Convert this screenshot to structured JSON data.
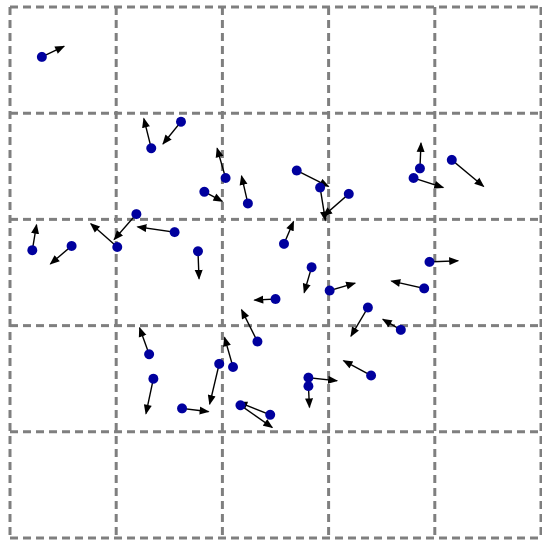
{
  "diagram": {
    "grid": {
      "rows": 5,
      "cols": 5,
      "style": "dashed"
    },
    "colors": {
      "grid": "#7f7f7f",
      "particle": "#00009e",
      "arrow": "#000000"
    },
    "particles": [
      {
        "x": 0.3,
        "y": 4.53,
        "dx": 0.21,
        "dy": 0.1
      },
      {
        "x": 1.61,
        "y": 3.92,
        "dx": -0.17,
        "dy": -0.21
      },
      {
        "x": 1.33,
        "y": 3.67,
        "dx": -0.07,
        "dy": 0.28
      },
      {
        "x": 1.83,
        "y": 3.26,
        "dx": 0.17,
        "dy": -0.09
      },
      {
        "x": 2.7,
        "y": 3.46,
        "dx": 0.3,
        "dy": -0.15
      },
      {
        "x": 2.24,
        "y": 3.15,
        "dx": -0.06,
        "dy": 0.26
      },
      {
        "x": 3.19,
        "y": 3.24,
        "dx": -0.24,
        "dy": -0.21
      },
      {
        "x": 2.03,
        "y": 3.39,
        "dx": -0.08,
        "dy": 0.28
      },
      {
        "x": 1.19,
        "y": 3.05,
        "dx": -0.21,
        "dy": -0.24
      },
      {
        "x": 1.55,
        "y": 2.88,
        "dx": -0.35,
        "dy": 0.05
      },
      {
        "x": 2.92,
        "y": 3.3,
        "dx": 0.05,
        "dy": -0.31
      },
      {
        "x": 0.58,
        "y": 2.75,
        "dx": -0.2,
        "dy": -0.17
      },
      {
        "x": 1.01,
        "y": 2.74,
        "dx": -0.25,
        "dy": 0.22
      },
      {
        "x": 0.21,
        "y": 2.71,
        "dx": 0.04,
        "dy": 0.24
      },
      {
        "x": 1.77,
        "y": 2.7,
        "dx": 0.01,
        "dy": -0.26
      },
      {
        "x": 2.58,
        "y": 2.77,
        "dx": 0.09,
        "dy": 0.21
      },
      {
        "x": 2.84,
        "y": 2.55,
        "dx": -0.07,
        "dy": -0.24
      },
      {
        "x": 3.8,
        "y": 3.39,
        "dx": 0.28,
        "dy": -0.09
      },
      {
        "x": 3.86,
        "y": 3.48,
        "dx": 0.01,
        "dy": 0.24
      },
      {
        "x": 4.16,
        "y": 3.56,
        "dx": 0.3,
        "dy": -0.25
      },
      {
        "x": 3.95,
        "y": 2.6,
        "dx": 0.27,
        "dy": 0.01
      },
      {
        "x": 3.9,
        "y": 2.35,
        "dx": -0.31,
        "dy": 0.07
      },
      {
        "x": 3.01,
        "y": 2.33,
        "dx": 0.24,
        "dy": 0.07
      },
      {
        "x": 2.5,
        "y": 2.25,
        "dx": -0.2,
        "dy": -0.01
      },
      {
        "x": 3.37,
        "y": 2.17,
        "dx": -0.16,
        "dy": -0.27
      },
      {
        "x": 3.68,
        "y": 1.96,
        "dx": -0.17,
        "dy": 0.1
      },
      {
        "x": 2.33,
        "y": 1.85,
        "dx": -0.15,
        "dy": 0.3
      },
      {
        "x": 1.31,
        "y": 1.73,
        "dx": -0.09,
        "dy": 0.25
      },
      {
        "x": 1.35,
        "y": 1.5,
        "dx": -0.07,
        "dy": -0.33
      },
      {
        "x": 2.1,
        "y": 1.61,
        "dx": -0.08,
        "dy": 0.28
      },
      {
        "x": 1.97,
        "y": 1.64,
        "dx": -0.09,
        "dy": -0.38
      },
      {
        "x": 3.4,
        "y": 1.53,
        "dx": -0.26,
        "dy": 0.14
      },
      {
        "x": 2.81,
        "y": 1.43,
        "dx": 0.01,
        "dy": -0.2
      },
      {
        "x": 2.81,
        "y": 1.51,
        "dx": 0.27,
        "dy": -0.03
      },
      {
        "x": 1.62,
        "y": 1.22,
        "dx": 0.25,
        "dy": -0.03
      },
      {
        "x": 2.45,
        "y": 1.16,
        "dx": -0.3,
        "dy": 0.12
      },
      {
        "x": 2.17,
        "y": 1.25,
        "dx": 0.3,
        "dy": -0.21
      }
    ]
  }
}
